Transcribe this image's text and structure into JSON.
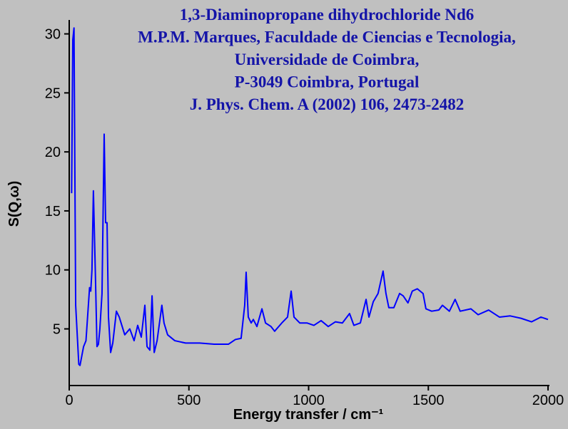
{
  "chart_data": {
    "type": "line",
    "title": [
      "1,3-Diaminopropane dihydrochloride Nd6",
      "M.P.M. Marques, Faculdade de Ciencias e Tecnologia,",
      "Universidade de Coimbra,",
      "P-3049 Coimbra, Portugal",
      "J. Phys. Chem. A (2002) 106, 2473-2482"
    ],
    "x_label": "Energy transfer / cm⁻¹",
    "y_label": "S(Q,ω)",
    "xlim": [
      0,
      2000
    ],
    "xticks": [
      0,
      500,
      1000,
      1500,
      2000
    ],
    "ylim": [
      0.2,
      31
    ],
    "yticks": [
      5,
      10,
      15,
      20,
      25,
      30
    ],
    "series": [
      {
        "name": "S(Q,ω)",
        "color": "#0000ff",
        "x": [
          10,
          15,
          20,
          27,
          40,
          45,
          60,
          70,
          80,
          85,
          90,
          95,
          101,
          110,
          116,
          122,
          128,
          137,
          146,
          152,
          158,
          164,
          173,
          182,
          197,
          209,
          232,
          253,
          271,
          286,
          301,
          316,
          325,
          337,
          346,
          355,
          367,
          387,
          396,
          411,
          441,
          486,
          545,
          605,
          665,
          694,
          718,
          733,
          739,
          748,
          760,
          769,
          784,
          805,
          820,
          843,
          858,
          888,
          912,
          927,
          939,
          963,
          993,
          1022,
          1052,
          1082,
          1112,
          1141,
          1171,
          1189,
          1216,
          1240,
          1252,
          1270,
          1290,
          1311,
          1323,
          1335,
          1356,
          1380,
          1395,
          1415,
          1433,
          1454,
          1478,
          1490,
          1514,
          1544,
          1559,
          1588,
          1612,
          1633,
          1678,
          1708,
          1752,
          1797,
          1842,
          1887,
          1931,
          1970,
          2000
        ],
        "values": [
          16.5,
          29.5,
          30.5,
          7,
          2,
          1.9,
          3.5,
          4,
          7,
          8.5,
          8.2,
          10,
          16.7,
          9,
          3.5,
          3.7,
          5,
          8,
          21.5,
          14,
          14,
          6,
          3,
          3.8,
          6.5,
          6,
          4.5,
          5,
          4,
          5.3,
          4.3,
          7,
          3.5,
          3.2,
          7.8,
          3,
          4,
          7,
          5.5,
          4.5,
          4,
          3.8,
          3.8,
          3.7,
          3.7,
          4.1,
          4.2,
          7,
          9.8,
          6,
          5.5,
          5.8,
          5.2,
          6.7,
          5.5,
          5.2,
          4.8,
          5.5,
          6,
          8.2,
          6,
          5.5,
          5.5,
          5.3,
          5.7,
          5.2,
          5.6,
          5.5,
          6.3,
          5.3,
          5.5,
          7.5,
          6,
          7.3,
          8,
          9.9,
          8,
          6.8,
          6.8,
          8,
          7.8,
          7.2,
          8.2,
          8.4,
          8,
          6.7,
          6.5,
          6.6,
          7,
          6.5,
          7.5,
          6.5,
          6.7,
          6.2,
          6.6,
          6,
          6.1,
          5.9,
          5.6,
          6,
          5.8
        ]
      }
    ]
  }
}
